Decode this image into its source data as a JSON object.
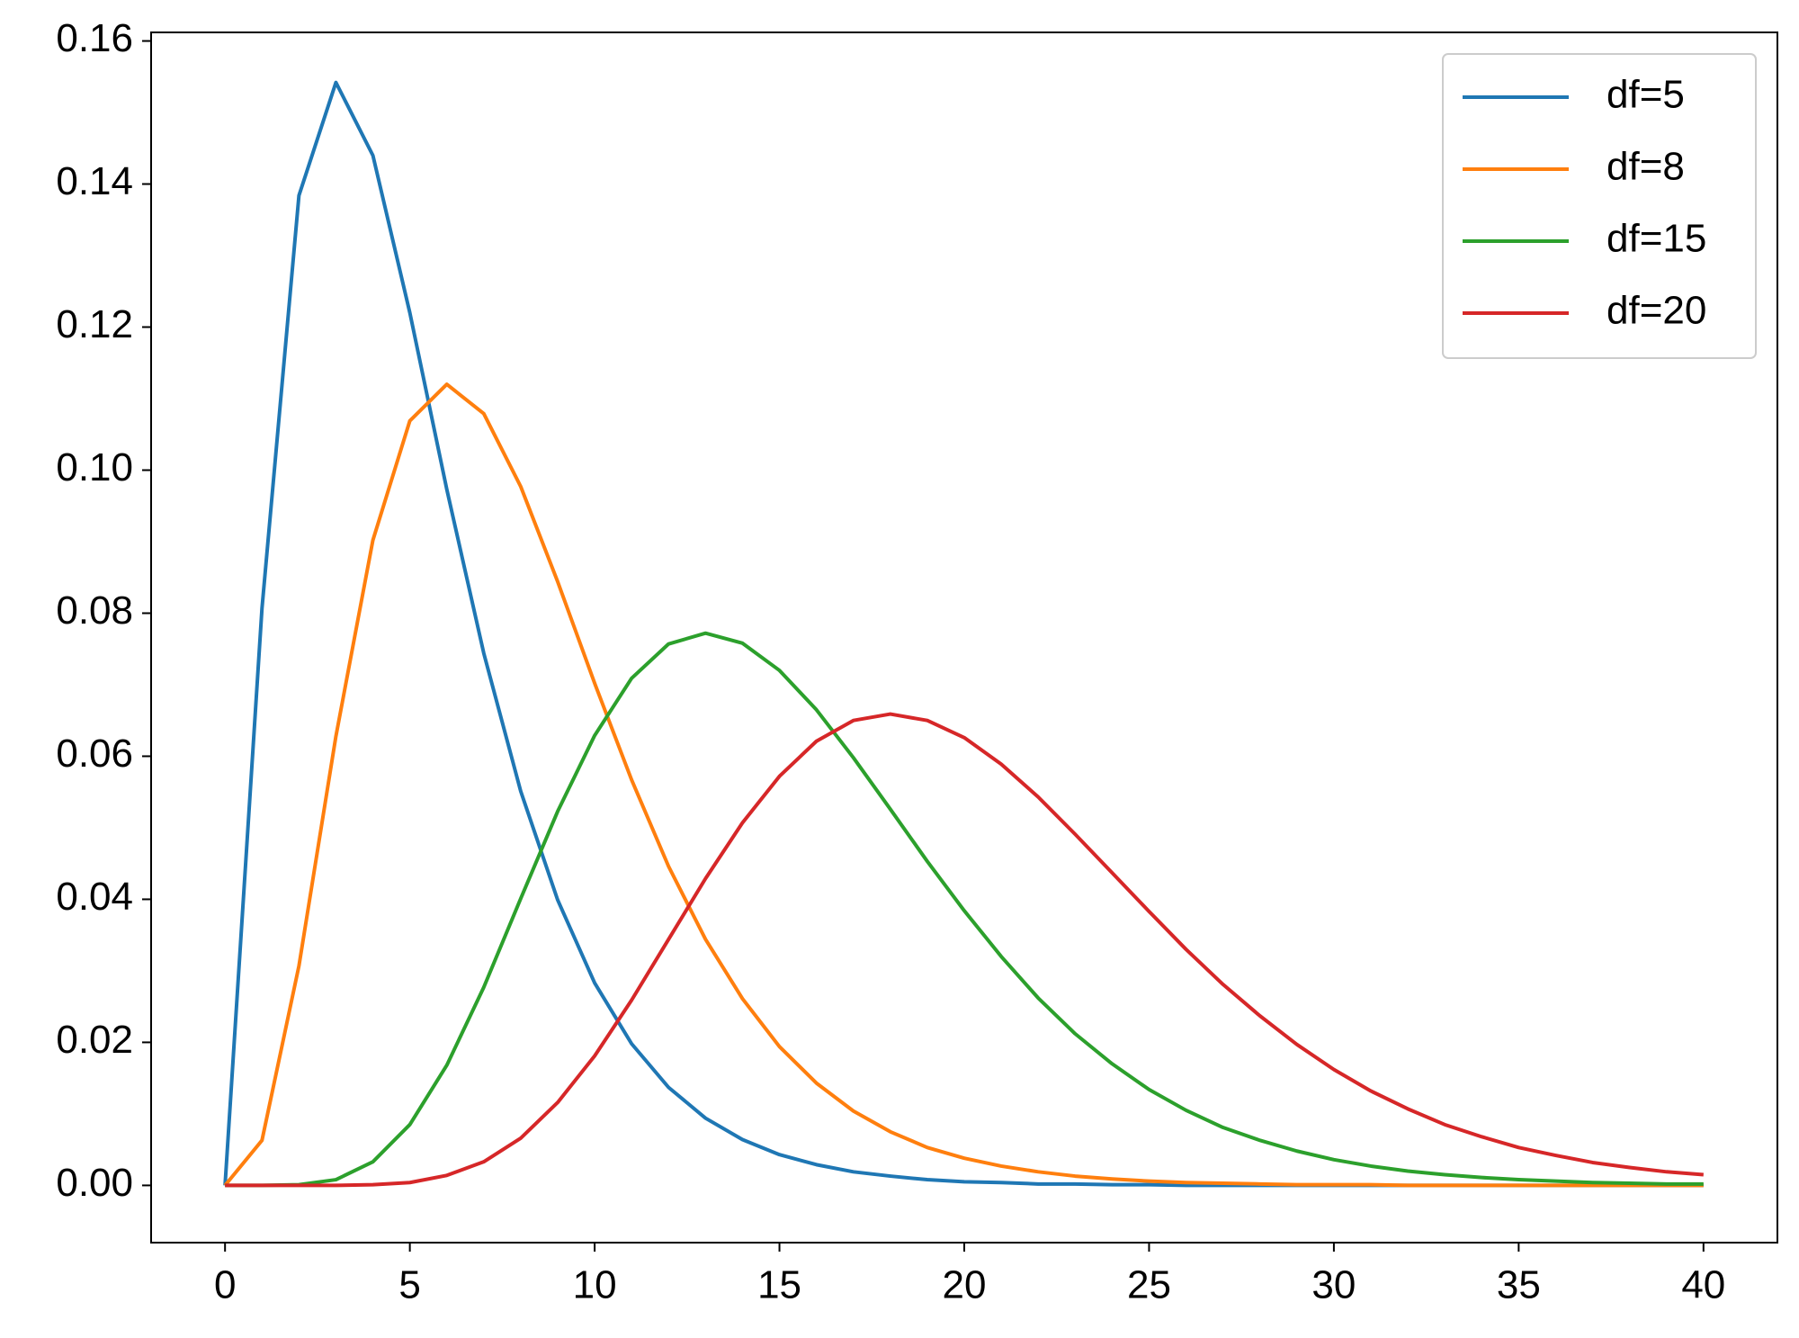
{
  "chart_data": {
    "type": "line",
    "x": [
      0,
      1,
      2,
      3,
      4,
      5,
      6,
      7,
      8,
      9,
      10,
      11,
      12,
      13,
      14,
      15,
      16,
      17,
      18,
      19,
      20,
      21,
      22,
      23,
      24,
      25,
      26,
      27,
      28,
      29,
      30,
      31,
      32,
      33,
      34,
      35,
      36,
      37,
      38,
      39,
      40
    ],
    "series": [
      {
        "name": "df=5",
        "color": "#1f77b4",
        "values": [
          0,
          0.0807,
          0.1384,
          0.1542,
          0.144,
          0.122,
          0.0973,
          0.0744,
          0.0551,
          0.0399,
          0.0283,
          0.0198,
          0.0137,
          0.0094,
          0.0064,
          0.0043,
          0.0029,
          0.0019,
          0.0013,
          0.0008,
          0.0005,
          0.0004,
          0.0002,
          0.0002,
          0.0001,
          0.0001,
          0,
          0,
          0,
          0,
          0,
          0,
          0,
          0,
          0,
          0,
          0,
          0,
          0,
          0,
          0
        ]
      },
      {
        "name": "df=8",
        "color": "#ff7f0e",
        "values": [
          0,
          0.0063,
          0.0307,
          0.0628,
          0.0902,
          0.1069,
          0.112,
          0.1079,
          0.0977,
          0.0844,
          0.0702,
          0.0567,
          0.0446,
          0.0344,
          0.0261,
          0.0194,
          0.0143,
          0.0104,
          0.0075,
          0.0053,
          0.0038,
          0.0027,
          0.0019,
          0.0013,
          0.0009,
          0.0006,
          0.0004,
          0.0003,
          0.0002,
          0.0001,
          0.0001,
          0.0001,
          0,
          0,
          0,
          0,
          0,
          0,
          0,
          0,
          0
        ]
      },
      {
        "name": "df=15",
        "color": "#2ca02c",
        "values": [
          0,
          0,
          0.0001,
          0.0008,
          0.0033,
          0.0085,
          0.0168,
          0.0277,
          0.0401,
          0.0523,
          0.0629,
          0.0709,
          0.0757,
          0.0772,
          0.0758,
          0.072,
          0.0665,
          0.0598,
          0.0526,
          0.0453,
          0.0384,
          0.032,
          0.0262,
          0.0212,
          0.017,
          0.0134,
          0.0105,
          0.0081,
          0.0063,
          0.0048,
          0.0036,
          0.0027,
          0.002,
          0.0015,
          0.0011,
          0.0008,
          0.0006,
          0.0004,
          0.0003,
          0.0002,
          0.0002
        ]
      },
      {
        "name": "df=20",
        "color": "#d62728",
        "values": [
          0,
          0,
          0,
          0,
          0.0001,
          0.0004,
          0.0014,
          0.0033,
          0.0066,
          0.0116,
          0.0181,
          0.0259,
          0.0344,
          0.0429,
          0.0507,
          0.0572,
          0.0621,
          0.065,
          0.0659,
          0.065,
          0.0626,
          0.0589,
          0.0543,
          0.0491,
          0.0437,
          0.0383,
          0.033,
          0.0281,
          0.0237,
          0.0197,
          0.0162,
          0.0132,
          0.0107,
          0.0085,
          0.0068,
          0.0053,
          0.0042,
          0.0032,
          0.0025,
          0.0019,
          0.0015
        ]
      }
    ],
    "xlim": [
      -2,
      42
    ],
    "ylim": [
      -0.008,
      0.1612
    ],
    "xticks": [
      0,
      5,
      10,
      15,
      20,
      25,
      30,
      35,
      40
    ],
    "yticks": [
      {
        "value": 0,
        "label": "0.00"
      },
      {
        "value": 0.02,
        "label": "0.02"
      },
      {
        "value": 0.04,
        "label": "0.04"
      },
      {
        "value": 0.06,
        "label": "0.06"
      },
      {
        "value": 0.08,
        "label": "0.08"
      },
      {
        "value": 0.1,
        "label": "0.10"
      },
      {
        "value": 0.12,
        "label": "0.12"
      },
      {
        "value": 0.14,
        "label": "0.14"
      },
      {
        "value": 0.16,
        "label": "0.16"
      }
    ],
    "grid": false,
    "legend": "upper right"
  }
}
